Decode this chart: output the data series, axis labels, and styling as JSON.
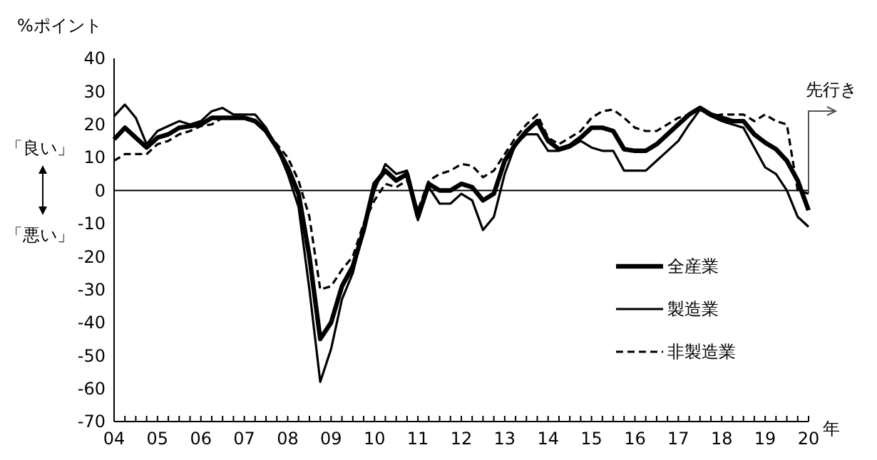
{
  "chart_data": {
    "type": "line",
    "ylabel": "%ポイント",
    "xlabel": "年",
    "annotations": [
      "「良い」",
      "「悪い」",
      {
        "text": "先行き",
        "x": 2020,
        "y": -1
      }
    ],
    "x": [
      2004,
      2004.25,
      2004.5,
      2004.75,
      2005,
      2005.25,
      2005.5,
      2005.75,
      2006,
      2006.25,
      2006.5,
      2006.75,
      2007,
      2007.25,
      2007.5,
      2007.75,
      2008,
      2008.25,
      2008.5,
      2008.75,
      2009,
      2009.25,
      2009.5,
      2009.75,
      2010,
      2010.25,
      2010.5,
      2010.75,
      2011,
      2011.25,
      2011.5,
      2011.75,
      2012,
      2012.25,
      2012.5,
      2012.75,
      2013,
      2013.25,
      2013.5,
      2013.75,
      2014,
      2014.25,
      2014.5,
      2014.75,
      2015,
      2015.25,
      2015.5,
      2015.75,
      2016,
      2016.25,
      2016.5,
      2016.75,
      2017,
      2017.25,
      2017.5,
      2017.75,
      2018,
      2018.25,
      2018.5,
      2018.75,
      2019,
      2019.25,
      2019.5,
      2019.75,
      2020
    ],
    "series": [
      {
        "name": "全産業",
        "color": "#000000",
        "line_style": "solid",
        "values": [
          15.5,
          19,
          16,
          13,
          16,
          17,
          19,
          19.5,
          20,
          22,
          22,
          22,
          22,
          21,
          18,
          13,
          7,
          -1,
          -20,
          -45,
          -40,
          -29,
          -23,
          -12,
          2,
          6,
          3,
          5,
          -8,
          2,
          0,
          0,
          2,
          1,
          -3,
          -1,
          9,
          14,
          18,
          21,
          15,
          12.5,
          13.5,
          16,
          19,
          19,
          18,
          12.5,
          12,
          12,
          14,
          17,
          20,
          23,
          25,
          23,
          22,
          21,
          21,
          17,
          14.5,
          12.5,
          9,
          3,
          -6
        ]
      },
      {
        "name": "製造業",
        "color": "#000000",
        "line_style": "solid",
        "values": [
          22.5,
          26,
          22,
          14,
          18,
          19.5,
          21,
          20,
          21,
          24,
          25,
          23,
          23,
          23,
          19,
          13,
          5,
          -5,
          -30,
          -58,
          -48,
          -33,
          -25,
          -12,
          0,
          8,
          5,
          6,
          -9,
          1,
          -4,
          -4,
          -1,
          -3,
          -12,
          -8,
          5,
          14,
          17,
          17,
          12,
          12,
          13,
          15,
          13,
          12,
          12,
          6,
          6,
          6,
          9,
          12,
          15,
          20,
          24.5,
          22.5,
          21,
          20,
          19,
          13,
          7,
          5,
          0,
          -8,
          -11
        ]
      },
      {
        "name": "非製造業",
        "color": "#000000",
        "line_style": "dashed",
        "values": [
          9,
          11,
          11,
          11,
          14,
          15,
          17,
          18,
          19.5,
          20,
          22,
          22,
          22,
          21,
          18,
          14,
          10,
          3,
          -8,
          -30,
          -29,
          -24,
          -20,
          -10,
          -3,
          2,
          1,
          3,
          -6,
          3,
          5,
          6,
          8,
          7.5,
          4,
          6,
          11,
          16,
          20,
          23,
          16,
          14,
          16,
          18,
          22,
          24,
          24.5,
          22,
          19,
          18,
          18,
          20,
          22,
          23,
          24.5,
          22.5,
          23,
          23,
          23,
          21,
          23,
          21,
          20,
          0,
          -1
        ]
      }
    ],
    "ylim": [
      -70,
      40
    ],
    "yticks": [
      -70,
      -60,
      -50,
      -40,
      -30,
      -20,
      -10,
      0,
      10,
      20,
      30,
      40
    ],
    "xlim": [
      2004,
      2020
    ],
    "xticks": [
      {
        "value": 2004,
        "label": "04"
      },
      {
        "value": 2004.25,
        "label": null
      },
      {
        "value": 2004.5,
        "label": null
      },
      {
        "value": 2004.75,
        "label": null
      },
      {
        "value": 2005,
        "label": "05"
      },
      {
        "value": 2005.25,
        "label": null
      },
      {
        "value": 2005.5,
        "label": null
      },
      {
        "value": 2005.75,
        "label": null
      },
      {
        "value": 2006,
        "label": "06"
      },
      {
        "value": 2006.25,
        "label": null
      },
      {
        "value": 2006.5,
        "label": null
      },
      {
        "value": 2006.75,
        "label": null
      },
      {
        "value": 2007,
        "label": "07"
      },
      {
        "value": 2007.25,
        "label": null
      },
      {
        "value": 2007.5,
        "label": null
      },
      {
        "value": 2007.75,
        "label": null
      },
      {
        "value": 2008,
        "label": "08"
      },
      {
        "value": 2008.25,
        "label": null
      },
      {
        "value": 2008.5,
        "label": null
      },
      {
        "value": 2008.75,
        "label": null
      },
      {
        "value": 2009,
        "label": "09"
      },
      {
        "value": 2009.25,
        "label": null
      },
      {
        "value": 2009.5,
        "label": null
      },
      {
        "value": 2009.75,
        "label": null
      },
      {
        "value": 2010,
        "label": "10"
      },
      {
        "value": 2010.25,
        "label": null
      },
      {
        "value": 2010.5,
        "label": null
      },
      {
        "value": 2010.75,
        "label": null
      },
      {
        "value": 2011,
        "label": "11"
      },
      {
        "value": 2011.25,
        "label": null
      },
      {
        "value": 2011.5,
        "label": null
      },
      {
        "value": 2011.75,
        "label": null
      },
      {
        "value": 2012,
        "label": "12"
      },
      {
        "value": 2012.25,
        "label": null
      },
      {
        "value": 2012.5,
        "label": null
      },
      {
        "value": 2012.75,
        "label": null
      },
      {
        "value": 2013,
        "label": "13"
      },
      {
        "value": 2013.25,
        "label": null
      },
      {
        "value": 2013.5,
        "label": null
      },
      {
        "value": 2013.75,
        "label": null
      },
      {
        "value": 2014,
        "label": "14"
      },
      {
        "value": 2014.25,
        "label": null
      },
      {
        "value": 2014.5,
        "label": null
      },
      {
        "value": 2014.75,
        "label": null
      },
      {
        "value": 2015,
        "label": "15"
      },
      {
        "value": 2015.25,
        "label": null
      },
      {
        "value": 2015.5,
        "label": null
      },
      {
        "value": 2015.75,
        "label": null
      },
      {
        "value": 2016,
        "label": "16"
      },
      {
        "value": 2016.25,
        "label": null
      },
      {
        "value": 2016.5,
        "label": null
      },
      {
        "value": 2016.75,
        "label": null
      },
      {
        "value": 2017,
        "label": "17"
      },
      {
        "value": 2017.25,
        "label": null
      },
      {
        "value": 2017.5,
        "label": null
      },
      {
        "value": 2017.75,
        "label": null
      },
      {
        "value": 2018,
        "label": "18"
      },
      {
        "value": 2018.25,
        "label": null
      },
      {
        "value": 2018.5,
        "label": null
      },
      {
        "value": 2018.75,
        "label": null
      },
      {
        "value": 2019,
        "label": "19"
      },
      {
        "value": 2019.25,
        "label": null
      },
      {
        "value": 2019.5,
        "label": null
      },
      {
        "value": 2019.75,
        "label": null
      },
      {
        "value": 2020,
        "label": "20"
      }
    ],
    "ref_lines": [
      {
        "axis": "y",
        "value": 0,
        "color": "#000000"
      }
    ],
    "grid": false,
    "legend": "right",
    "marker": "none"
  }
}
